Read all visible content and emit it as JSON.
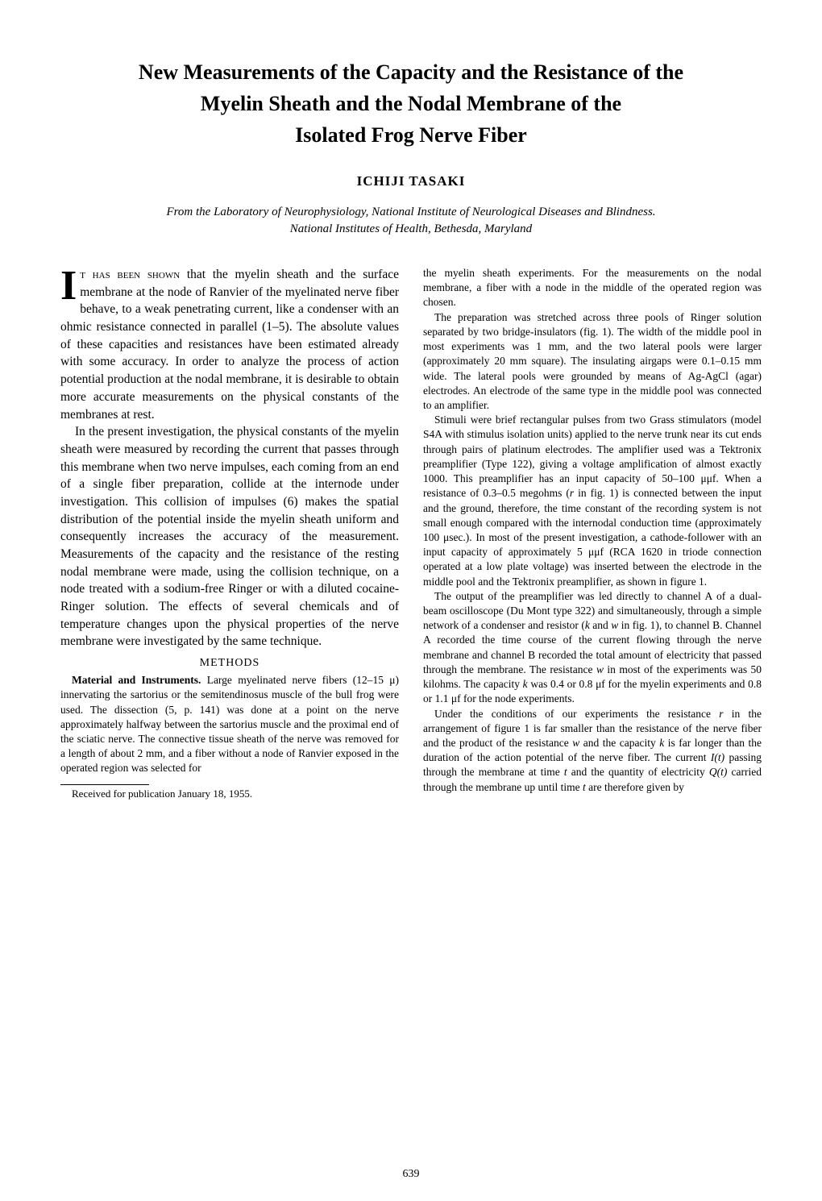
{
  "title_line1": "New Measurements of the Capacity and the Resistance of the",
  "title_line2": "Myelin Sheath and the Nodal Membrane of the",
  "title_line3": "Isolated Frog Nerve Fiber",
  "author": "ICHIJI TASAKI",
  "affiliation_line1": "From the Laboratory of Neurophysiology, National Institute of Neurological Diseases and Blindness.",
  "affiliation_line2": "National Institutes of Health, Bethesda, Maryland",
  "drop_cap": "I",
  "first_para_smallcaps": "t has been shown",
  "first_para_rest": " that the myelin sheath and the surface membrane at the node of Ranvier of the myelinated nerve fiber behave, to a weak penetrating current, like a condenser with an ohmic resistance connected in parallel (1–5). The absolute values of these capacities and resistances have been estimated already with some accuracy. In order to analyze the process of action potential production at the nodal membrane, it is desirable to obtain more accurate measurements on the physical constants of the membranes at rest.",
  "para2": "In the present investigation, the physical constants of the myelin sheath were measured by recording the current that passes through this membrane when two nerve impulses, each coming from an end of a single fiber preparation, collide at the internode under investigation. This collision of impulses (6) makes the spatial distribution of the potential inside the myelin sheath uniform and consequently increases the accuracy of the measurement. Measurements of the capacity and the resistance of the resting nodal membrane were made, using the collision technique, on a node treated with a sodium-free Ringer or with a diluted cocaine-Ringer solution. The effects of several chemicals and of temperature changes upon the physical properties of the nerve membrane were investigated by the same technique.",
  "methods_heading": "METHODS",
  "methods_label": "Material and Instruments.",
  "methods_p1": " Large myelinated nerve fibers (12–15 μ) innervating the sartorius or the semitendinosus muscle of the bull frog were used. The dissection (5, p. 141) was done at a point on the nerve approximately halfway between the sartorius muscle and the proximal end of the sciatic nerve. The connective tissue sheath of the nerve was removed for a length of about 2 mm, and a fiber without a node of Ranvier exposed in the operated region was selected for",
  "footnote": "Received for publication January 18, 1955.",
  "col2_p1_cont": "the myelin sheath experiments. For the measurements on the nodal membrane, a fiber with a node in the middle of the operated region was chosen.",
  "col2_p2": "The preparation was stretched across three pools of Ringer solution separated by two bridge-insulators (fig. 1). The width of the middle pool in most experiments was 1 mm, and the two lateral pools were larger (approximately 20 mm square). The insulating airgaps were 0.1–0.15 mm wide. The lateral pools were grounded by means of Ag-AgCl (agar) electrodes. An electrode of the same type in the middle pool was connected to an amplifier.",
  "col2_p3a": "Stimuli were brief rectangular pulses from two Grass stimulators (model S4A with stimulus isolation units) applied to the nerve trunk near its cut ends through pairs of platinum electrodes. The amplifier used was a Tektronix preamplifier (Type 122), giving a voltage amplification of almost exactly 1000. This preamplifier has an input capacity of 50–100 μμf. When a resistance of 0.3–0.5 megohms (",
  "col2_p3_r": "r",
  "col2_p3b": " in fig. 1) is connected between the input and the ground, therefore, the time constant of the recording system is not small enough compared with the internodal conduction time (approximately 100 μsec.). In most of the present investigation, a cathode-follower with an input capacity of approximately 5 μμf (RCA 1620 in triode connection operated at a low plate voltage) was inserted between the electrode in the middle pool and the Tektronix preamplifier, as shown in figure 1.",
  "col2_p4a": "The output of the preamplifier was led directly to channel A of a dual-beam oscilloscope (Du Mont type 322) and simultaneously, through a simple network of a condenser and resistor (",
  "col2_p4_k": "k",
  "col2_p4b": " and ",
  "col2_p4_w": "w",
  "col2_p4c": " in fig. 1), to channel B. Channel A recorded the time course of the current flowing through the nerve membrane and channel B recorded the total amount of electricity that passed through the membrane. The resistance ",
  "col2_p4_w2": "w",
  "col2_p4d": " in most of the experiments was 50 kilohms. The capacity ",
  "col2_p4_k2": "k",
  "col2_p4e": " was 0.4 or 0.8 μf for the myelin experiments and 0.8 or 1.1 μf for the node experiments.",
  "col2_p5a": "Under the conditions of our experiments the resistance ",
  "col2_p5_r": "r",
  "col2_p5b": " in the arrangement of figure 1 is far smaller than the resistance of the nerve fiber and the product of the resistance ",
  "col2_p5_w": "w",
  "col2_p5c": " and the capacity ",
  "col2_p5_k": "k",
  "col2_p5d": " is far longer than the duration of the action potential of the nerve fiber. The current ",
  "col2_p5_It": "I(t)",
  "col2_p5e": " passing through the membrane at time ",
  "col2_p5_t": "t",
  "col2_p5f": " and the quantity of electricity ",
  "col2_p5_Qt": "Q(t)",
  "col2_p5g": " carried through the membrane up until time ",
  "col2_p5_t2": "t",
  "col2_p5h": " are therefore given by",
  "page_number": "639"
}
